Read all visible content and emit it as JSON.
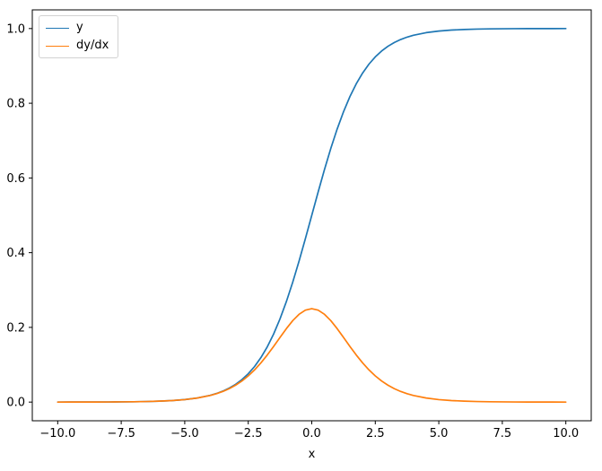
{
  "chart_data": {
    "type": "line",
    "title": "",
    "xlabel": "x",
    "ylabel": "",
    "grid": false,
    "legend_position": "upper left",
    "background": "#ffffff",
    "spine_color": "#000000",
    "text_color": "#000000",
    "xlim": [
      -11,
      11
    ],
    "ylim": [
      -0.05,
      1.05
    ],
    "x_ticks": [
      -10.0,
      -7.5,
      -5.0,
      -2.5,
      0.0,
      2.5,
      5.0,
      7.5,
      10.0
    ],
    "x_tick_labels": [
      "−10.0",
      "−7.5",
      "−5.0",
      "−2.5",
      "0.0",
      "2.5",
      "5.0",
      "7.5",
      "10.0"
    ],
    "y_ticks": [
      0.0,
      0.2,
      0.4,
      0.6,
      0.8,
      1.0
    ],
    "y_tick_labels": [
      "0.0",
      "0.2",
      "0.4",
      "0.6",
      "0.8",
      "1.0"
    ],
    "x": [
      -10,
      -9.5,
      -9,
      -8.5,
      -8,
      -7.5,
      -7,
      -6.5,
      -6,
      -5.5,
      -5,
      -4.5,
      -4,
      -3.75,
      -3.5,
      -3.25,
      -3,
      -2.75,
      -2.5,
      -2.25,
      -2,
      -1.75,
      -1.5,
      -1.25,
      -1,
      -0.75,
      -0.5,
      -0.25,
      0,
      0.25,
      0.5,
      0.75,
      1,
      1.25,
      1.5,
      1.75,
      2,
      2.25,
      2.5,
      2.75,
      3,
      3.25,
      3.5,
      3.75,
      4,
      4.5,
      5,
      5.5,
      6,
      6.5,
      7,
      7.5,
      8,
      8.5,
      9,
      9.5,
      10
    ],
    "series": [
      {
        "name": "y",
        "color": "#1f77b4",
        "values": [
          0.0,
          0.0001,
          0.0001,
          0.0002,
          0.0003,
          0.0006,
          0.0009,
          0.0015,
          0.0025,
          0.0041,
          0.0067,
          0.011,
          0.018,
          0.023,
          0.0293,
          0.0373,
          0.0474,
          0.0601,
          0.0759,
          0.0953,
          0.1192,
          0.148,
          0.1824,
          0.2227,
          0.2689,
          0.3208,
          0.3775,
          0.4378,
          0.5,
          0.5622,
          0.6225,
          0.6792,
          0.7311,
          0.7773,
          0.8176,
          0.852,
          0.8808,
          0.9047,
          0.9241,
          0.9399,
          0.9526,
          0.9627,
          0.9707,
          0.977,
          0.982,
          0.989,
          0.9933,
          0.9959,
          0.9975,
          0.9985,
          0.9991,
          0.9994,
          0.9997,
          0.9998,
          0.9999,
          0.9999,
          1.0
        ]
      },
      {
        "name": "dy/dx",
        "color": "#ff7f0e",
        "values": [
          0.0,
          0.0001,
          0.0001,
          0.0002,
          0.0003,
          0.0006,
          0.0009,
          0.0015,
          0.0025,
          0.0041,
          0.0066,
          0.0109,
          0.0177,
          0.0225,
          0.0284,
          0.0359,
          0.0452,
          0.0565,
          0.0701,
          0.0862,
          0.105,
          0.1261,
          0.1491,
          0.1731,
          0.1966,
          0.2179,
          0.235,
          0.2461,
          0.25,
          0.2461,
          0.235,
          0.2179,
          0.1966,
          0.1731,
          0.1491,
          0.1261,
          0.105,
          0.0862,
          0.0701,
          0.0565,
          0.0452,
          0.0359,
          0.0284,
          0.0225,
          0.0177,
          0.0109,
          0.0066,
          0.0041,
          0.0025,
          0.0015,
          0.0009,
          0.0006,
          0.0003,
          0.0002,
          0.0001,
          0.0001,
          0.0
        ]
      }
    ]
  }
}
